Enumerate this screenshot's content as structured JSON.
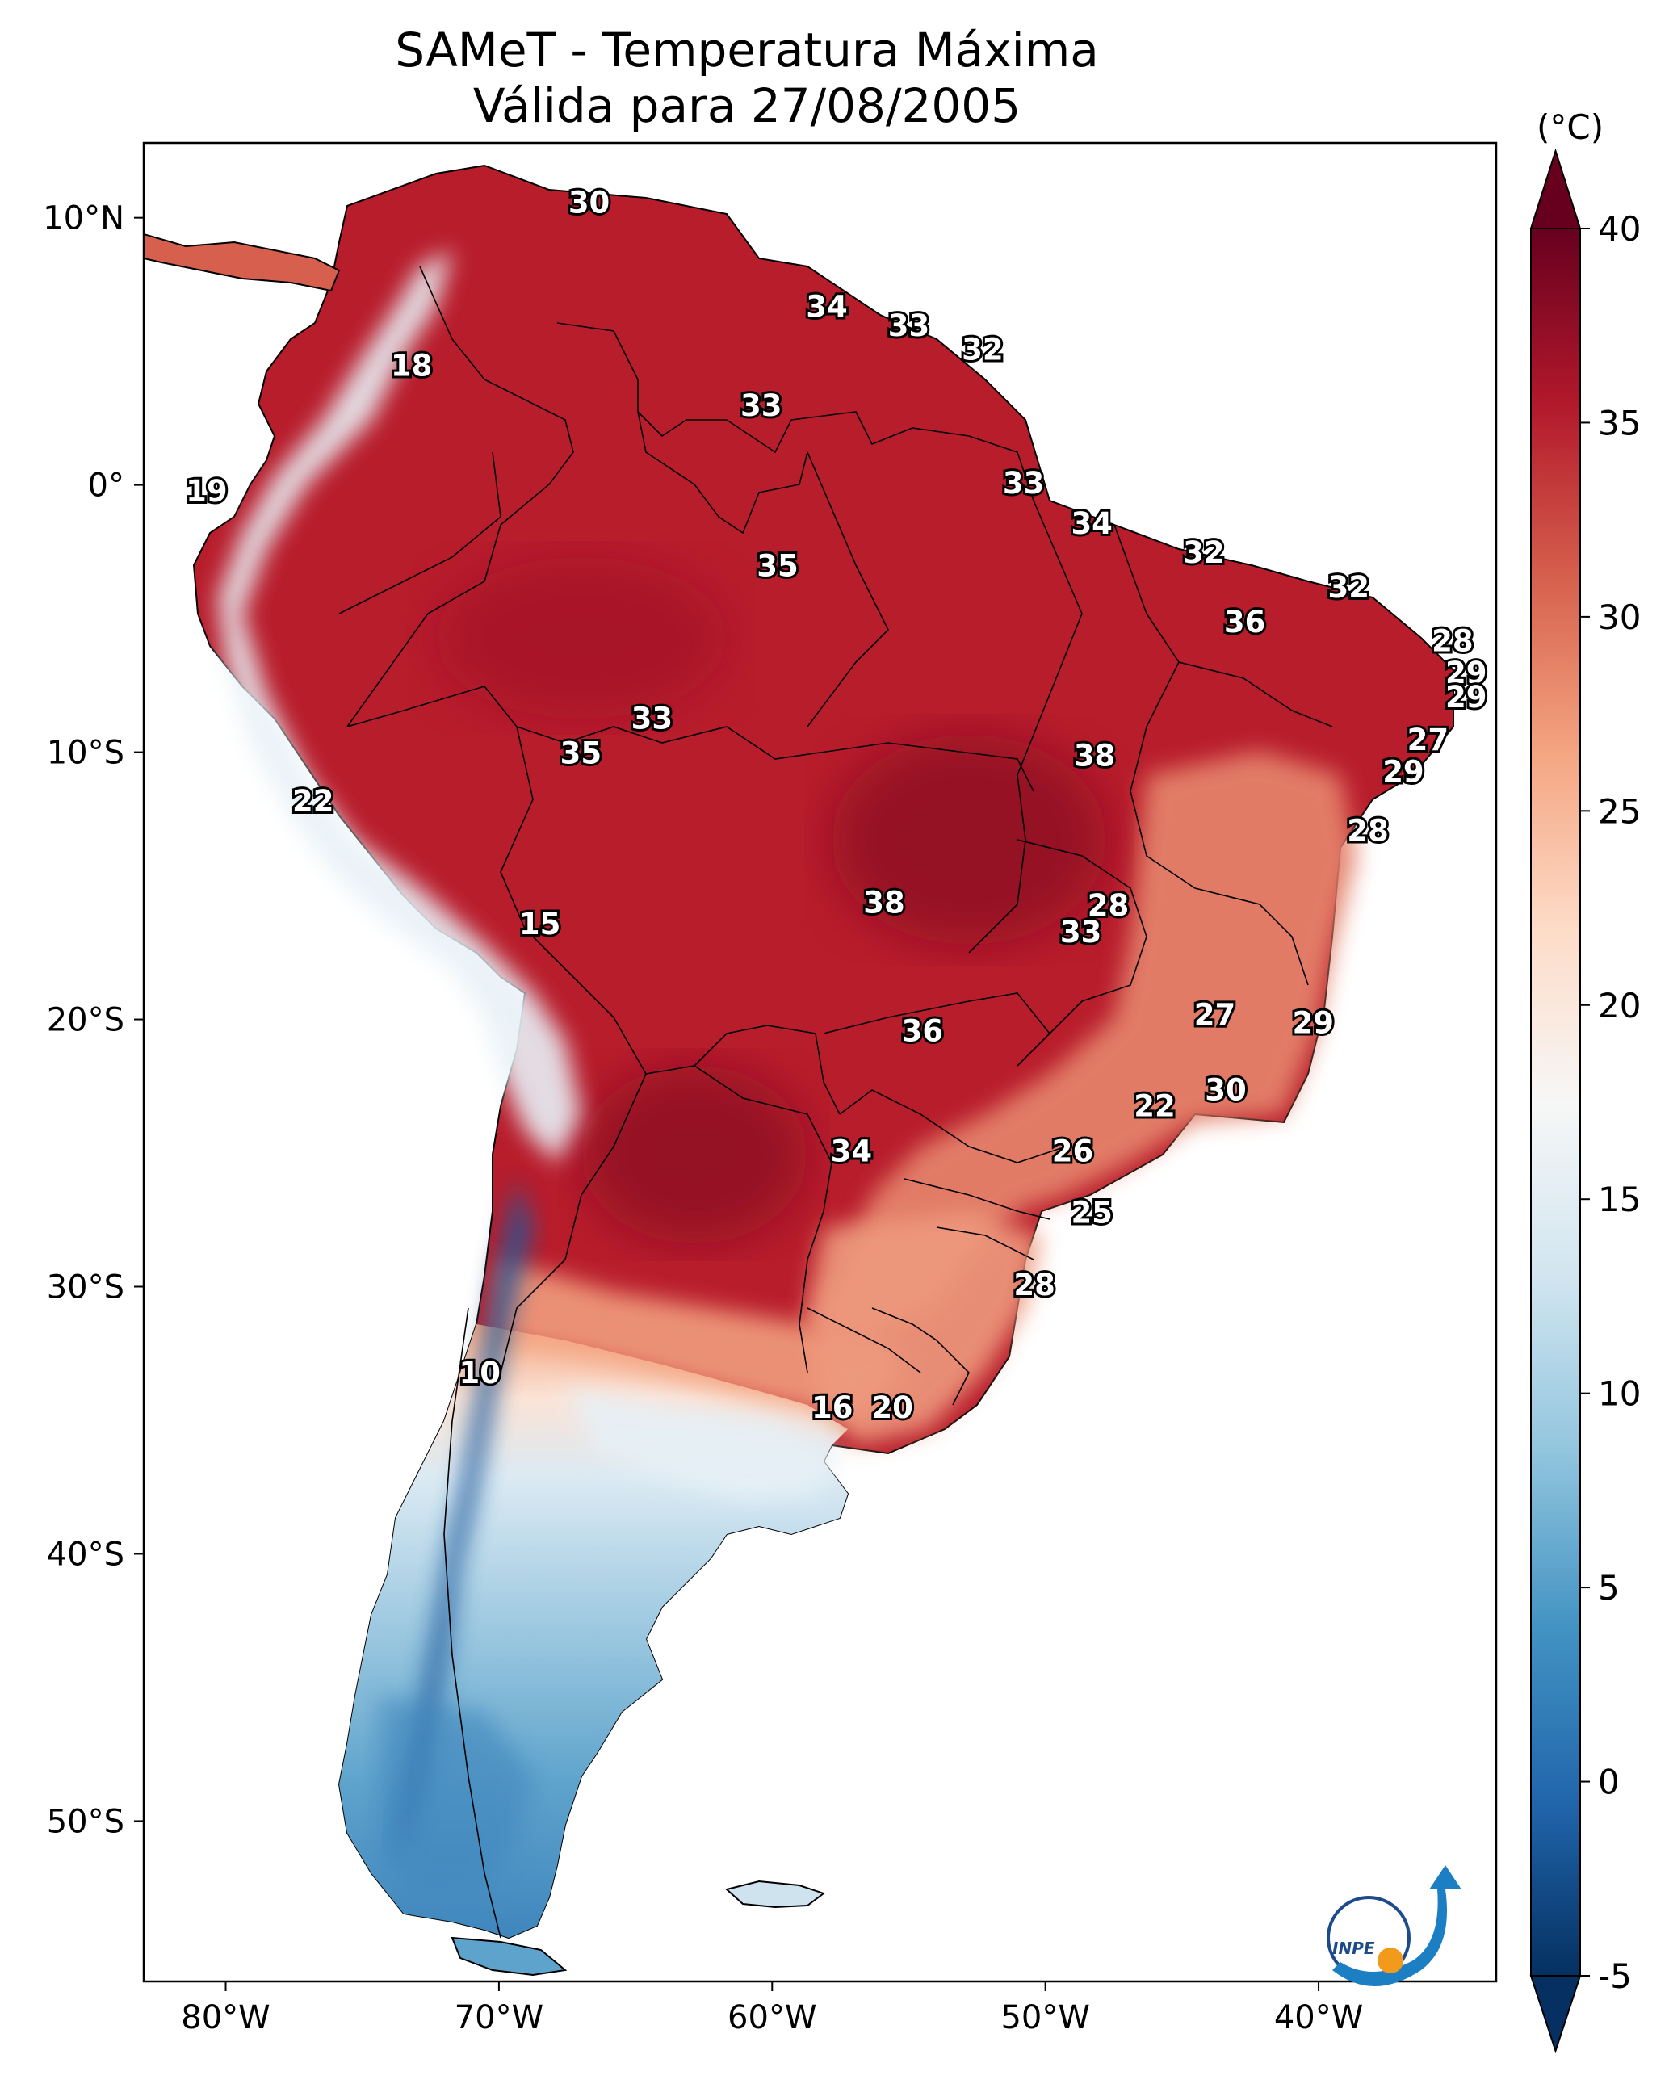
{
  "title": {
    "line1": "SAMeT - Temperatura Máxima",
    "line2": "Válida para 27/08/2005"
  },
  "axes": {
    "lon_range": [
      -83,
      -33.5
    ],
    "lat_range": [
      -56,
      12.8
    ],
    "lon_ticks": [
      {
        "value": -80,
        "label": "80°W"
      },
      {
        "value": -70,
        "label": "70°W"
      },
      {
        "value": -60,
        "label": "60°W"
      },
      {
        "value": -50,
        "label": "50°W"
      },
      {
        "value": -40,
        "label": "40°W"
      }
    ],
    "lat_ticks": [
      {
        "value": 10,
        "label": "10°N"
      },
      {
        "value": 0,
        "label": "0°"
      },
      {
        "value": -10,
        "label": "10°S"
      },
      {
        "value": -20,
        "label": "20°S"
      },
      {
        "value": -30,
        "label": "30°S"
      },
      {
        "value": -40,
        "label": "40°S"
      },
      {
        "value": -50,
        "label": "50°S"
      }
    ]
  },
  "colorbar": {
    "unit_label": "(°C)",
    "min": -5,
    "max": 40,
    "ticks": [
      {
        "value": 40,
        "label": "40"
      },
      {
        "value": 35,
        "label": "35"
      },
      {
        "value": 30,
        "label": "30"
      },
      {
        "value": 25,
        "label": "25"
      },
      {
        "value": 20,
        "label": "20"
      },
      {
        "value": 15,
        "label": "15"
      },
      {
        "value": 10,
        "label": "10"
      },
      {
        "value": 5,
        "label": "5"
      },
      {
        "value": 0,
        "label": "0"
      },
      {
        "value": -5,
        "label": "-5"
      }
    ],
    "colors": [
      "#053061",
      "#2166ac",
      "#4393c3",
      "#92c5de",
      "#d1e5f0",
      "#f7f7f7",
      "#fddbc7",
      "#f4a582",
      "#d6604d",
      "#b2182b",
      "#67001f"
    ]
  },
  "logo": {
    "text": "INPE"
  },
  "map_labels": [
    {
      "lon": -66.7,
      "lat": 10.5,
      "text": "30"
    },
    {
      "lon": -58.0,
      "lat": 6.6,
      "text": "34"
    },
    {
      "lon": -55.0,
      "lat": 5.9,
      "text": "33"
    },
    {
      "lon": -52.3,
      "lat": 5.0,
      "text": "32"
    },
    {
      "lon": -73.2,
      "lat": 4.4,
      "text": "18"
    },
    {
      "lon": -60.4,
      "lat": 2.9,
      "text": "33"
    },
    {
      "lon": -50.8,
      "lat": 0.0,
      "text": "33"
    },
    {
      "lon": -80.7,
      "lat": -0.3,
      "text": "19"
    },
    {
      "lon": -48.3,
      "lat": -1.5,
      "text": "34"
    },
    {
      "lon": -44.2,
      "lat": -2.6,
      "text": "32"
    },
    {
      "lon": -38.9,
      "lat": -3.9,
      "text": "32"
    },
    {
      "lon": -59.8,
      "lat": -3.1,
      "text": "35"
    },
    {
      "lon": -42.7,
      "lat": -5.2,
      "text": "36"
    },
    {
      "lon": -35.1,
      "lat": -5.9,
      "text": "28"
    },
    {
      "lon": -34.6,
      "lat": -7.1,
      "text": "29"
    },
    {
      "lon": -34.6,
      "lat": -8.0,
      "text": "29"
    },
    {
      "lon": -36.0,
      "lat": -9.6,
      "text": "27"
    },
    {
      "lon": -36.9,
      "lat": -10.8,
      "text": "29"
    },
    {
      "lon": -64.4,
      "lat": -8.8,
      "text": "33"
    },
    {
      "lon": -67.0,
      "lat": -10.1,
      "text": "35"
    },
    {
      "lon": -48.2,
      "lat": -10.2,
      "text": "38"
    },
    {
      "lon": -76.8,
      "lat": -11.9,
      "text": "22"
    },
    {
      "lon": -38.2,
      "lat": -13.0,
      "text": "28"
    },
    {
      "lon": -55.9,
      "lat": -15.7,
      "text": "38"
    },
    {
      "lon": -47.7,
      "lat": -15.8,
      "text": "28"
    },
    {
      "lon": -48.7,
      "lat": -16.8,
      "text": "33"
    },
    {
      "lon": -68.5,
      "lat": -16.5,
      "text": "15"
    },
    {
      "lon": -43.8,
      "lat": -19.9,
      "text": "27"
    },
    {
      "lon": -40.2,
      "lat": -20.2,
      "text": "29"
    },
    {
      "lon": -54.5,
      "lat": -20.5,
      "text": "36"
    },
    {
      "lon": -43.4,
      "lat": -22.7,
      "text": "30"
    },
    {
      "lon": -46.0,
      "lat": -23.3,
      "text": "22"
    },
    {
      "lon": -57.1,
      "lat": -25.0,
      "text": "34"
    },
    {
      "lon": -49.0,
      "lat": -25.0,
      "text": "26"
    },
    {
      "lon": -48.3,
      "lat": -27.3,
      "text": "25"
    },
    {
      "lon": -50.4,
      "lat": -30.0,
      "text": "28"
    },
    {
      "lon": -70.7,
      "lat": -33.3,
      "text": "10"
    },
    {
      "lon": -57.8,
      "lat": -34.6,
      "text": "16"
    },
    {
      "lon": -55.6,
      "lat": -34.6,
      "text": "20"
    }
  ]
}
